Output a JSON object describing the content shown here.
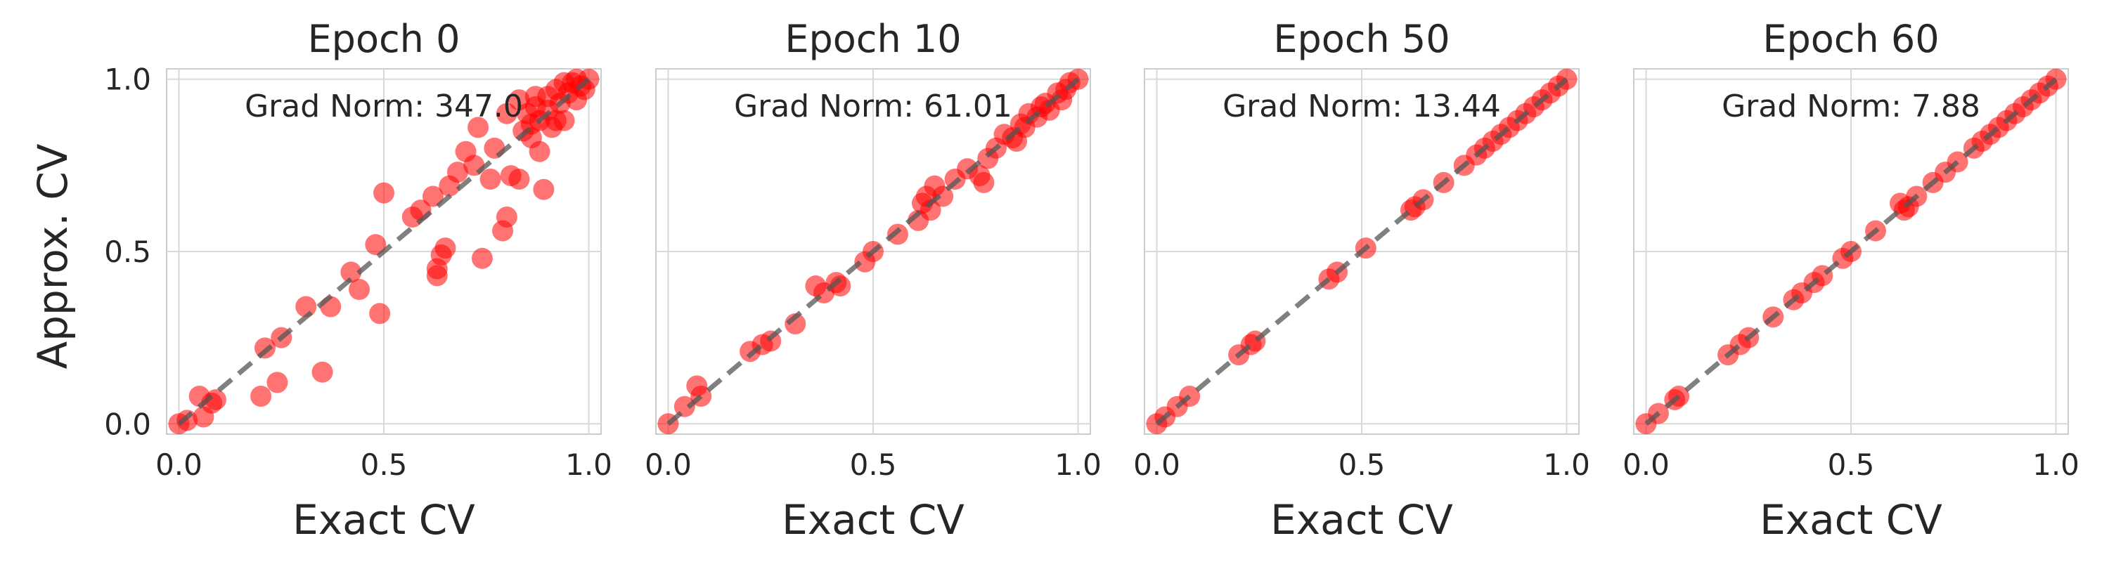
{
  "figure": {
    "ylabel": "Approx. CV",
    "colors": {
      "points": "#ff0000",
      "diagonal": "#555555",
      "grid": "#d9d9d9",
      "frame": "#cccccc"
    }
  },
  "chart_data": [
    {
      "type": "scatter",
      "title": "Epoch 0",
      "xlabel": "Exact CV",
      "ylabel": "Approx. CV",
      "annotation": "Grad Norm: 347.0",
      "xlim": [
        -0.03,
        1.03
      ],
      "ylim": [
        -0.03,
        1.03
      ],
      "xticks": [
        0.0,
        0.5,
        1.0
      ],
      "xtick_labels": [
        "0.0",
        "0.5",
        "1.0"
      ],
      "yticks": [
        0.0,
        0.5,
        1.0
      ],
      "ytick_labels": [
        "0.0",
        "0.5",
        "1.0"
      ],
      "grid": true,
      "reference_line": [
        [
          0,
          0
        ],
        [
          1,
          1
        ]
      ],
      "points": [
        [
          0.0,
          0.0
        ],
        [
          0.02,
          0.01
        ],
        [
          0.05,
          0.08
        ],
        [
          0.08,
          0.06
        ],
        [
          0.09,
          0.07
        ],
        [
          0.06,
          0.02
        ],
        [
          0.2,
          0.08
        ],
        [
          0.24,
          0.12
        ],
        [
          0.21,
          0.22
        ],
        [
          0.25,
          0.25
        ],
        [
          0.31,
          0.34
        ],
        [
          0.35,
          0.15
        ],
        [
          0.37,
          0.34
        ],
        [
          0.42,
          0.44
        ],
        [
          0.44,
          0.39
        ],
        [
          0.49,
          0.32
        ],
        [
          0.48,
          0.52
        ],
        [
          0.5,
          0.67
        ],
        [
          0.57,
          0.6
        ],
        [
          0.59,
          0.62
        ],
        [
          0.62,
          0.66
        ],
        [
          0.63,
          0.45
        ],
        [
          0.63,
          0.43
        ],
        [
          0.64,
          0.49
        ],
        [
          0.65,
          0.51
        ],
        [
          0.66,
          0.69
        ],
        [
          0.68,
          0.73
        ],
        [
          0.7,
          0.79
        ],
        [
          0.72,
          0.75
        ],
        [
          0.74,
          0.48
        ],
        [
          0.73,
          0.86
        ],
        [
          0.77,
          0.8
        ],
        [
          0.8,
          0.6
        ],
        [
          0.79,
          0.56
        ],
        [
          0.81,
          0.72
        ],
        [
          0.83,
          0.71
        ],
        [
          0.84,
          0.85
        ],
        [
          0.85,
          0.9
        ],
        [
          0.86,
          0.83
        ],
        [
          0.87,
          0.95
        ],
        [
          0.88,
          0.79
        ],
        [
          0.88,
          0.88
        ],
        [
          0.89,
          0.68
        ],
        [
          0.9,
          0.91
        ],
        [
          0.91,
          0.86
        ],
        [
          0.92,
          0.97
        ],
        [
          0.93,
          0.93
        ],
        [
          0.94,
          0.88
        ],
        [
          0.95,
          0.96
        ],
        [
          0.96,
          0.99
        ],
        [
          0.97,
          0.94
        ],
        [
          0.98,
          0.98
        ],
        [
          0.99,
          0.97
        ],
        [
          1.0,
          1.0
        ],
        [
          0.87,
          0.92
        ],
        [
          0.9,
          0.95
        ],
        [
          0.94,
          0.99
        ],
        [
          0.97,
          1.0
        ],
        [
          0.86,
          0.87
        ],
        [
          0.8,
          0.9
        ],
        [
          0.76,
          0.71
        ],
        [
          0.83,
          0.94
        ],
        [
          0.92,
          0.88
        ]
      ]
    },
    {
      "type": "scatter",
      "title": "Epoch 10",
      "xlabel": "Exact CV",
      "ylabel": "",
      "annotation": "Grad Norm: 61.01",
      "xlim": [
        -0.03,
        1.03
      ],
      "ylim": [
        -0.03,
        1.03
      ],
      "xticks": [
        0.0,
        0.5,
        1.0
      ],
      "xtick_labels": [
        "0.0",
        "0.5",
        "1.0"
      ],
      "yticks": [
        0.0,
        0.5,
        1.0
      ],
      "ytick_labels": [
        "",
        "",
        ""
      ],
      "grid": true,
      "reference_line": [
        [
          0,
          0
        ],
        [
          1,
          1
        ]
      ],
      "points": [
        [
          0.0,
          0.0
        ],
        [
          0.04,
          0.05
        ],
        [
          0.07,
          0.11
        ],
        [
          0.08,
          0.08
        ],
        [
          0.2,
          0.21
        ],
        [
          0.23,
          0.23
        ],
        [
          0.25,
          0.24
        ],
        [
          0.31,
          0.29
        ],
        [
          0.36,
          0.4
        ],
        [
          0.38,
          0.38
        ],
        [
          0.41,
          0.41
        ],
        [
          0.42,
          0.4
        ],
        [
          0.48,
          0.47
        ],
        [
          0.5,
          0.5
        ],
        [
          0.56,
          0.55
        ],
        [
          0.61,
          0.59
        ],
        [
          0.62,
          0.64
        ],
        [
          0.63,
          0.66
        ],
        [
          0.64,
          0.62
        ],
        [
          0.65,
          0.69
        ],
        [
          0.67,
          0.66
        ],
        [
          0.7,
          0.71
        ],
        [
          0.73,
          0.74
        ],
        [
          0.76,
          0.72
        ],
        [
          0.77,
          0.7
        ],
        [
          0.78,
          0.77
        ],
        [
          0.8,
          0.8
        ],
        [
          0.82,
          0.84
        ],
        [
          0.84,
          0.83
        ],
        [
          0.86,
          0.87
        ],
        [
          0.87,
          0.86
        ],
        [
          0.88,
          0.9
        ],
        [
          0.9,
          0.89
        ],
        [
          0.92,
          0.93
        ],
        [
          0.93,
          0.91
        ],
        [
          0.95,
          0.96
        ],
        [
          0.97,
          0.97
        ],
        [
          0.98,
          0.99
        ],
        [
          1.0,
          1.0
        ],
        [
          0.85,
          0.82
        ],
        [
          0.91,
          0.92
        ],
        [
          0.96,
          0.94
        ]
      ]
    },
    {
      "type": "scatter",
      "title": "Epoch 50",
      "xlabel": "Exact CV",
      "ylabel": "",
      "annotation": "Grad Norm: 13.44",
      "xlim": [
        -0.03,
        1.03
      ],
      "ylim": [
        -0.03,
        1.03
      ],
      "xticks": [
        0.0,
        0.5,
        1.0
      ],
      "xtick_labels": [
        "0.0",
        "0.5",
        "1.0"
      ],
      "yticks": [
        0.0,
        0.5,
        1.0
      ],
      "ytick_labels": [
        "",
        "",
        ""
      ],
      "grid": true,
      "reference_line": [
        [
          0,
          0
        ],
        [
          1,
          1
        ]
      ],
      "points": [
        [
          0.0,
          0.0
        ],
        [
          0.02,
          0.02
        ],
        [
          0.05,
          0.05
        ],
        [
          0.08,
          0.08
        ],
        [
          0.2,
          0.2
        ],
        [
          0.23,
          0.23
        ],
        [
          0.24,
          0.24
        ],
        [
          0.42,
          0.42
        ],
        [
          0.44,
          0.44
        ],
        [
          0.51,
          0.51
        ],
        [
          0.62,
          0.62
        ],
        [
          0.63,
          0.63
        ],
        [
          0.65,
          0.65
        ],
        [
          0.7,
          0.7
        ],
        [
          0.75,
          0.75
        ],
        [
          0.78,
          0.78
        ],
        [
          0.8,
          0.8
        ],
        [
          0.82,
          0.82
        ],
        [
          0.84,
          0.84
        ],
        [
          0.86,
          0.86
        ],
        [
          0.88,
          0.88
        ],
        [
          0.9,
          0.9
        ],
        [
          0.92,
          0.92
        ],
        [
          0.94,
          0.94
        ],
        [
          0.96,
          0.96
        ],
        [
          0.98,
          0.98
        ],
        [
          1.0,
          1.0
        ]
      ]
    },
    {
      "type": "scatter",
      "title": "Epoch 60",
      "xlabel": "Exact CV",
      "ylabel": "",
      "annotation": "Grad Norm: 7.88",
      "xlim": [
        -0.03,
        1.03
      ],
      "ylim": [
        -0.03,
        1.03
      ],
      "xticks": [
        0.0,
        0.5,
        1.0
      ],
      "xtick_labels": [
        "0.0",
        "0.5",
        "1.0"
      ],
      "yticks": [
        0.0,
        0.5,
        1.0
      ],
      "ytick_labels": [
        "",
        "",
        ""
      ],
      "grid": true,
      "reference_line": [
        [
          0,
          0
        ],
        [
          1,
          1
        ]
      ],
      "points": [
        [
          0.0,
          0.0
        ],
        [
          0.03,
          0.03
        ],
        [
          0.07,
          0.07
        ],
        [
          0.08,
          0.08
        ],
        [
          0.2,
          0.2
        ],
        [
          0.23,
          0.23
        ],
        [
          0.25,
          0.25
        ],
        [
          0.31,
          0.31
        ],
        [
          0.36,
          0.36
        ],
        [
          0.38,
          0.38
        ],
        [
          0.41,
          0.41
        ],
        [
          0.43,
          0.43
        ],
        [
          0.48,
          0.48
        ],
        [
          0.5,
          0.5
        ],
        [
          0.56,
          0.56
        ],
        [
          0.62,
          0.64
        ],
        [
          0.63,
          0.62
        ],
        [
          0.64,
          0.63
        ],
        [
          0.66,
          0.66
        ],
        [
          0.7,
          0.7
        ],
        [
          0.73,
          0.73
        ],
        [
          0.76,
          0.76
        ],
        [
          0.8,
          0.8
        ],
        [
          0.82,
          0.82
        ],
        [
          0.84,
          0.84
        ],
        [
          0.86,
          0.86
        ],
        [
          0.88,
          0.88
        ],
        [
          0.9,
          0.9
        ],
        [
          0.92,
          0.92
        ],
        [
          0.94,
          0.94
        ],
        [
          0.96,
          0.96
        ],
        [
          0.98,
          0.98
        ],
        [
          1.0,
          1.0
        ]
      ]
    }
  ]
}
